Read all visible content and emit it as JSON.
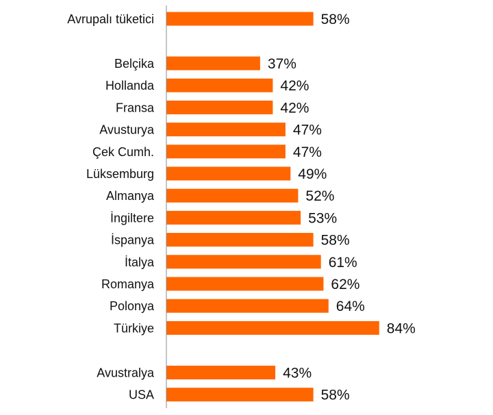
{
  "chart_data": {
    "type": "bar",
    "orientation": "horizontal",
    "title": "",
    "xlabel": "",
    "ylabel": "",
    "grid": false,
    "legend": "none",
    "bar_color": "#FF6600",
    "value_suffix": "%",
    "xlim": [
      0,
      100
    ],
    "groups": [
      {
        "categories": [
          "Avrupalı tüketici"
        ],
        "values": [
          58
        ]
      },
      {
        "categories": [
          "Belçika",
          "Hollanda",
          "Fransa",
          "Avusturya",
          "Çek Cumh.",
          "Lüksemburg",
          "Almanya",
          "İngiltere",
          "İspanya",
          "İtalya",
          "Romanya",
          "Polonya",
          "Türkiye"
        ],
        "values": [
          37,
          42,
          42,
          47,
          47,
          49,
          52,
          53,
          58,
          61,
          62,
          64,
          84
        ]
      },
      {
        "categories": [
          "Avustralya",
          "USA"
        ],
        "values": [
          43,
          58
        ]
      }
    ]
  }
}
